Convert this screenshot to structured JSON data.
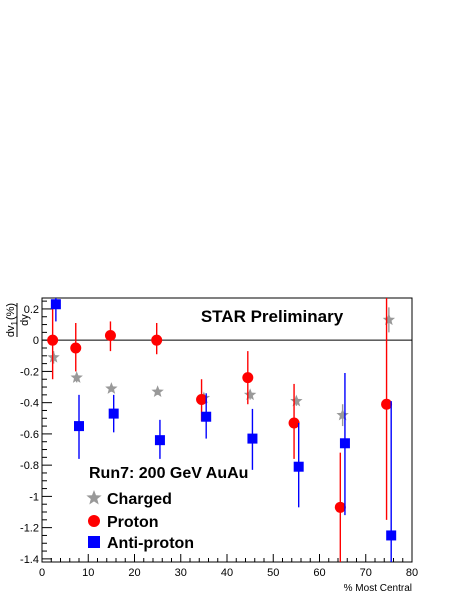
{
  "chart_data": {
    "type": "scatter",
    "annotation": "STAR Preliminary",
    "sublabel": "Run7: 200 GeV AuAu",
    "xlabel": "% Most Central",
    "ylabel": {
      "main": "dv",
      "sub": "1",
      "suffix": "(%)",
      "den": "dy"
    },
    "xlim": [
      0,
      80
    ],
    "ylim": [
      -1.42,
      0.27
    ],
    "xticks": [
      0,
      10,
      20,
      30,
      40,
      50,
      60,
      70,
      80
    ],
    "yticks": [
      -1.4,
      -1.2,
      -1,
      -0.8,
      -0.6,
      -0.4,
      -0.2,
      0,
      0.2
    ],
    "ytick_labels": [
      "-1.4",
      "-1.2",
      "-1",
      "-0.8",
      "-0.6",
      "-0.4",
      "-0.2",
      "0",
      "0.2"
    ],
    "legend_placement": "bottom-left",
    "series": [
      {
        "name": "Charged",
        "marker": "star",
        "color": "#999999",
        "points": [
          {
            "x": 2.5,
            "y": -0.11,
            "lo": -0.15,
            "hi": -0.07
          },
          {
            "x": 7.5,
            "y": -0.24,
            "lo": -0.27,
            "hi": -0.21
          },
          {
            "x": 15,
            "y": -0.31,
            "lo": -0.33,
            "hi": -0.29
          },
          {
            "x": 25,
            "y": -0.33,
            "lo": -0.35,
            "hi": -0.31
          },
          {
            "x": 35,
            "y": -0.37,
            "lo": -0.4,
            "hi": -0.34
          },
          {
            "x": 45,
            "y": -0.35,
            "lo": -0.38,
            "hi": -0.32
          },
          {
            "x": 55,
            "y": -0.39,
            "lo": -0.42,
            "hi": -0.36
          },
          {
            "x": 65,
            "y": -0.48,
            "lo": -0.55,
            "hi": -0.41
          },
          {
            "x": 75,
            "y": 0.13,
            "lo": 0.05,
            "hi": 0.21
          }
        ]
      },
      {
        "name": "Proton",
        "marker": "circle",
        "color": "#ff0000",
        "points": [
          {
            "x": 2.3,
            "y": 0.0,
            "lo": -0.25,
            "hi": 0.25
          },
          {
            "x": 7.3,
            "y": -0.05,
            "lo": -0.2,
            "hi": 0.11
          },
          {
            "x": 14.8,
            "y": 0.03,
            "lo": -0.07,
            "hi": 0.12
          },
          {
            "x": 24.8,
            "y": 0.0,
            "lo": -0.09,
            "hi": 0.11
          },
          {
            "x": 34.5,
            "y": -0.38,
            "lo": -0.52,
            "hi": -0.25
          },
          {
            "x": 44.5,
            "y": -0.24,
            "lo": -0.41,
            "hi": -0.07
          },
          {
            "x": 54.5,
            "y": -0.53,
            "lo": -0.76,
            "hi": -0.28
          },
          {
            "x": 64.5,
            "y": -1.07,
            "lo": -1.42,
            "hi": -0.72
          },
          {
            "x": 74.5,
            "y": -0.41,
            "lo": -1.15,
            "hi": 0.27
          }
        ]
      },
      {
        "name": "Anti-proton",
        "marker": "square",
        "color": "#0000ff",
        "points": [
          {
            "x": 3.0,
            "y": 0.23,
            "lo": 0.12,
            "hi": 0.27
          },
          {
            "x": 8.0,
            "y": -0.55,
            "lo": -0.76,
            "hi": -0.35
          },
          {
            "x": 15.5,
            "y": -0.47,
            "lo": -0.59,
            "hi": -0.35
          },
          {
            "x": 25.5,
            "y": -0.64,
            "lo": -0.76,
            "hi": -0.51
          },
          {
            "x": 35.5,
            "y": -0.49,
            "lo": -0.63,
            "hi": -0.34
          },
          {
            "x": 45.5,
            "y": -0.63,
            "lo": -0.83,
            "hi": -0.44
          },
          {
            "x": 55.5,
            "y": -0.81,
            "lo": -1.07,
            "hi": -0.53
          },
          {
            "x": 65.5,
            "y": -0.66,
            "lo": -1.12,
            "hi": -0.21
          },
          {
            "x": 75.5,
            "y": -1.25,
            "lo": -1.42,
            "hi": -0.39
          }
        ]
      }
    ]
  }
}
